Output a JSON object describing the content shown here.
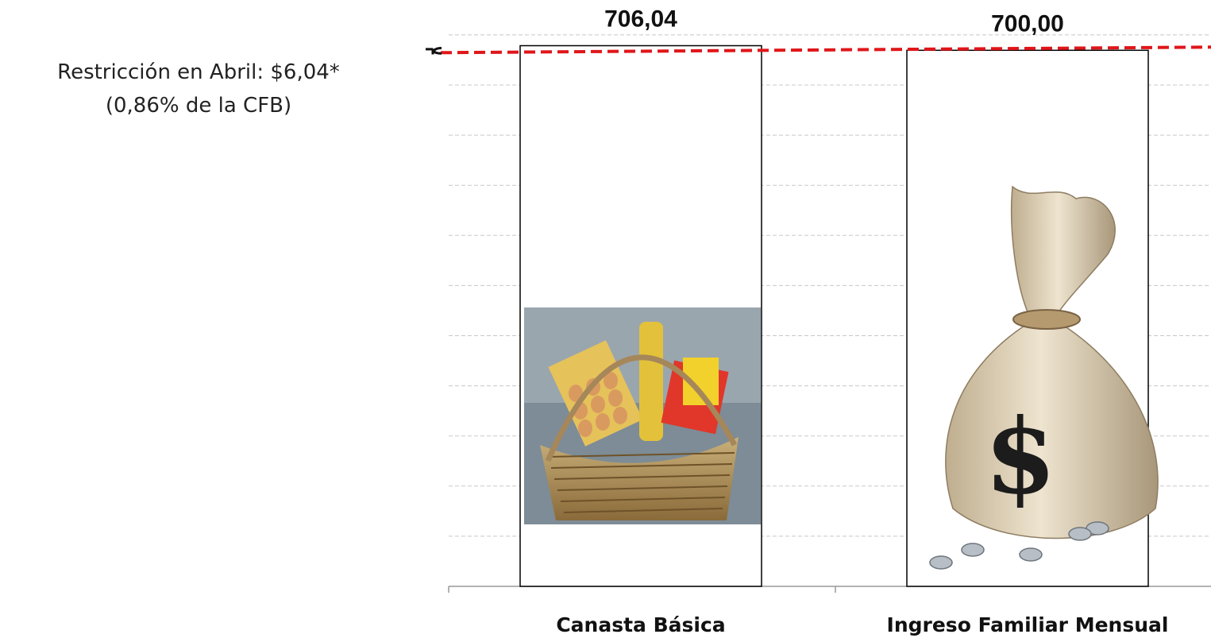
{
  "annotation": {
    "line1": "Restricción en Abril: $6,04*",
    "line2": "(0,86% de la CFB)"
  },
  "colors": {
    "bar_outline": "#000000",
    "threshold_line": "#e0161a",
    "grid": "#c8c8c8",
    "axis": "#999999"
  },
  "chart_data": {
    "type": "bar",
    "categories": [
      "Canasta Básica",
      "Ingreso Familiar Mensual"
    ],
    "series": [
      {
        "values": [
          706.04,
          700.0
        ],
        "value_labels": [
          "706,04",
          "700,00"
        ]
      }
    ],
    "reference_line": {
      "value": 700.0,
      "style": "dashed",
      "color": "#e0161a"
    },
    "bar_fill_images": [
      "grocery-basket-photo",
      "money-bag-with-dollar-sign"
    ],
    "ylim": [
      0,
      720
    ],
    "grid": true,
    "legend": "none"
  }
}
